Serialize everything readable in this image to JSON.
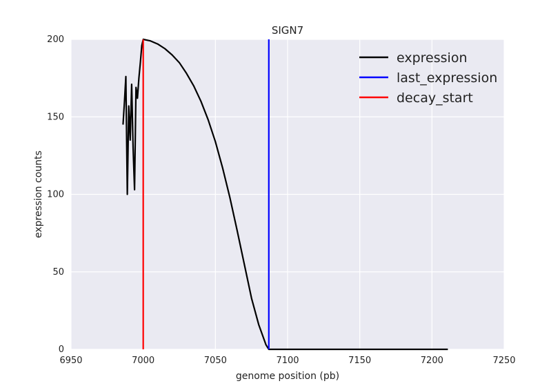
{
  "chart_data": {
    "type": "line",
    "title": "SIGN7",
    "xlabel": "genome position (pb)",
    "ylabel": "expression counts",
    "xlim": [
      6950,
      7250
    ],
    "ylim": [
      0,
      200
    ],
    "xticks": [
      6950,
      7000,
      7050,
      7100,
      7150,
      7200,
      7250
    ],
    "yticks": [
      0,
      50,
      100,
      150,
      200
    ],
    "grid": true,
    "legend_position": "top-right",
    "series": [
      {
        "name": "expression",
        "color": "#000000",
        "kind": "line",
        "x": [
          6986,
          6987,
          6988,
          6989,
          6990,
          6991,
          6992,
          6993,
          6994,
          6995,
          6996,
          6997,
          6998,
          6999,
          7000,
          7005,
          7010,
          7015,
          7020,
          7025,
          7030,
          7035,
          7040,
          7045,
          7050,
          7055,
          7060,
          7065,
          7070,
          7075,
          7080,
          7085,
          7087,
          7100,
          7150,
          7200,
          7211
        ],
        "y": [
          145,
          160,
          176,
          100,
          157,
          135,
          171,
          130,
          103,
          169,
          162,
          175,
          185,
          196,
          200,
          199,
          197,
          194,
          190,
          185,
          178,
          170,
          160,
          148,
          134,
          117,
          98,
          77,
          55,
          33,
          16,
          3,
          0,
          0,
          0,
          0,
          0
        ]
      },
      {
        "name": "last_expression",
        "color": "#0000ff",
        "kind": "vline",
        "x": 7087
      },
      {
        "name": "decay_start",
        "color": "#ff0000",
        "kind": "vline",
        "x": 7000
      }
    ]
  }
}
